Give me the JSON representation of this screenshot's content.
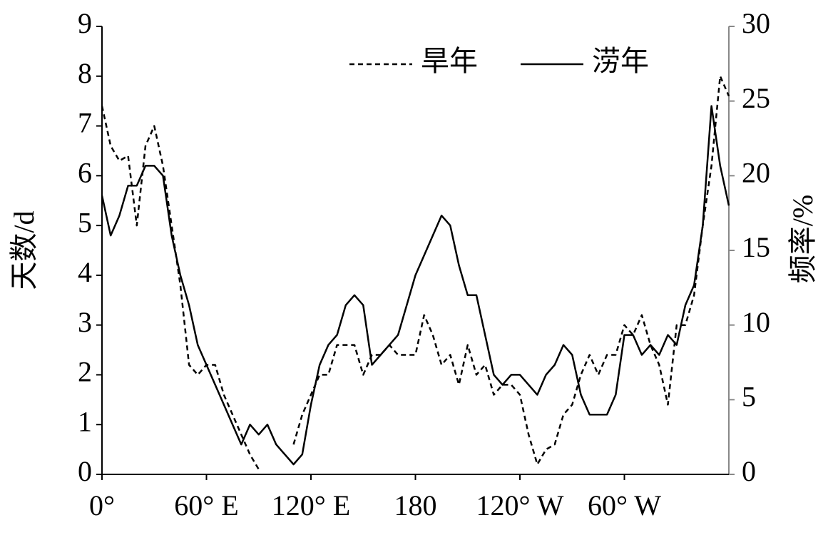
{
  "chart_data": {
    "type": "line",
    "x": [
      0,
      5,
      10,
      15,
      20,
      25,
      30,
      35,
      40,
      45,
      50,
      55,
      60,
      65,
      70,
      75,
      80,
      85,
      90,
      95,
      100,
      105,
      110,
      115,
      120,
      125,
      130,
      135,
      140,
      145,
      150,
      155,
      160,
      165,
      170,
      175,
      180,
      185,
      190,
      195,
      200,
      205,
      210,
      215,
      220,
      225,
      230,
      235,
      240,
      245,
      250,
      255,
      260,
      265,
      270,
      275,
      280,
      285,
      290,
      295,
      300,
      305,
      310,
      315,
      320,
      325,
      330,
      335,
      340,
      345,
      350,
      355,
      360
    ],
    "series": [
      {
        "name": "旱年",
        "color": "#000000",
        "dash": true,
        "values": [
          7.4,
          6.6,
          6.3,
          6.4,
          5.0,
          6.6,
          7.0,
          6.2,
          5.0,
          3.8,
          2.2,
          2.0,
          2.2,
          2.2,
          1.6,
          1.2,
          0.8,
          0.4,
          0.1,
          null,
          null,
          null,
          0.6,
          1.2,
          1.6,
          2.0,
          2.0,
          2.6,
          2.6,
          2.6,
          2.0,
          2.4,
          2.4,
          2.6,
          2.4,
          2.4,
          2.4,
          3.2,
          2.8,
          2.2,
          2.4,
          1.8,
          2.6,
          2.0,
          2.2,
          1.6,
          1.8,
          1.8,
          1.6,
          0.8,
          0.2,
          0.5,
          0.6,
          1.2,
          1.4,
          2.0,
          2.4,
          2.0,
          2.4,
          2.4,
          3.0,
          2.8,
          3.2,
          2.6,
          2.2,
          1.4,
          3.0,
          3.0,
          3.6,
          5.0,
          6.2,
          8.0,
          7.6
        ]
      },
      {
        "name": "涝年",
        "color": "#000000",
        "dash": false,
        "values": [
          5.6,
          4.8,
          5.2,
          5.8,
          5.8,
          6.2,
          6.2,
          6.0,
          4.8,
          4.0,
          3.4,
          2.6,
          2.2,
          1.8,
          1.4,
          1.0,
          0.6,
          1.0,
          0.8,
          1.0,
          0.6,
          0.4,
          0.2,
          0.4,
          1.4,
          2.2,
          2.6,
          2.8,
          3.4,
          3.6,
          3.4,
          2.2,
          2.4,
          2.6,
          2.8,
          3.4,
          4.0,
          4.4,
          4.8,
          5.2,
          5.0,
          4.2,
          3.6,
          3.6,
          2.8,
          2.0,
          1.8,
          2.0,
          2.0,
          1.8,
          1.6,
          2.0,
          2.2,
          2.6,
          2.4,
          1.6,
          1.2,
          1.2,
          1.2,
          1.6,
          2.8,
          2.8,
          2.4,
          2.6,
          2.4,
          2.8,
          2.6,
          3.4,
          3.8,
          5.0,
          7.4,
          6.2,
          5.4
        ]
      }
    ],
    "xlim": [
      0,
      360
    ],
    "xticks": [
      {
        "value": 0,
        "label": "0°"
      },
      {
        "value": 60,
        "label": "60° E"
      },
      {
        "value": 120,
        "label": "120° E"
      },
      180,
      {
        "value": 240,
        "label": "120° W"
      },
      {
        "value": 300,
        "label": "60° W"
      }
    ],
    "ylim": [
      0,
      9
    ],
    "yticks": [
      0,
      1,
      2,
      3,
      4,
      5,
      6,
      7,
      8,
      9
    ],
    "y2lim": [
      0,
      30
    ],
    "y2ticks": [
      0,
      5,
      10,
      15,
      20,
      25,
      30
    ],
    "ylabel": "天数/d",
    "y2label": "频率/%"
  }
}
